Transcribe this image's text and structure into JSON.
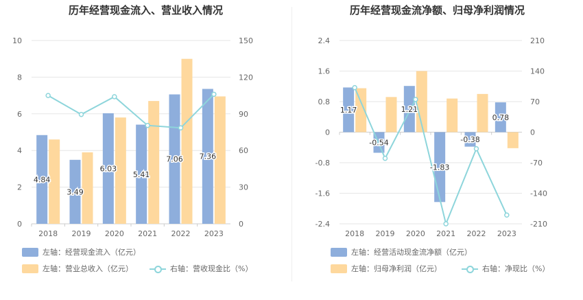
{
  "left_chart": {
    "title": "历年经营现金流入、营业收入情况",
    "legend": {
      "item1": "左轴：经营现金流入（亿元）",
      "item2": "左轴：营业总收入（亿元）",
      "item3": "右轴：营收现金比（%）"
    }
  },
  "right_chart": {
    "title": "历年经营现金流净额、归母净利润情况",
    "legend": {
      "item1": "左轴：经营活动现金流净额（亿元）",
      "item2": "左轴：归母净利润（亿元）",
      "item3": "右轴：净现比（%）"
    }
  },
  "colors": {
    "blue": "#8eaedc",
    "orange": "#fed89d",
    "line": "#8dd5db"
  },
  "chart_data": [
    {
      "type": "bar",
      "categories": [
        "2018",
        "2019",
        "2020",
        "2021",
        "2022",
        "2023"
      ],
      "series": [
        {
          "name": "左轴：经营现金流入（亿元）",
          "axis": "left",
          "values": [
            4.84,
            3.49,
            6.03,
            5.41,
            7.06,
            7.36
          ],
          "labels": [
            "4.84",
            "3.49",
            "6.03",
            "5.41",
            "7.06",
            "7.36"
          ]
        },
        {
          "name": "左轴：营业总收入（亿元）",
          "axis": "left",
          "values": [
            4.6,
            3.9,
            5.8,
            6.7,
            9.0,
            6.95
          ]
        },
        {
          "name": "右轴：营收现金比（%）",
          "axis": "right",
          "type": "line",
          "values": [
            105,
            89.5,
            104,
            80.5,
            78.5,
            106
          ]
        }
      ],
      "left_axis": {
        "ticks": [
          "0",
          "2",
          "4",
          "6",
          "8",
          "10"
        ],
        "ylim": [
          0,
          10
        ]
      },
      "right_axis": {
        "ticks": [
          "0",
          "30",
          "60",
          "90",
          "120",
          "150"
        ],
        "ylim": [
          0,
          150
        ]
      },
      "grid": true
    },
    {
      "type": "bar",
      "categories": [
        "2018",
        "2019",
        "2020",
        "2021",
        "2022",
        "2023"
      ],
      "series": [
        {
          "name": "左轴：经营活动现金流净额（亿元）",
          "axis": "left",
          "values": [
            1.17,
            -0.54,
            1.21,
            -1.83,
            -0.38,
            0.78
          ],
          "labels": [
            "1.17",
            "-0.54",
            "1.21",
            "-1.83",
            "-0.38",
            "0.78"
          ]
        },
        {
          "name": "左轴：归母净利润（亿元）",
          "axis": "left",
          "values": [
            1.15,
            0.92,
            1.6,
            0.88,
            1.0,
            -0.42
          ]
        },
        {
          "name": "右轴：净现比（%）",
          "axis": "right",
          "type": "line",
          "values": [
            102,
            -60,
            75,
            -210,
            -38,
            -190
          ]
        }
      ],
      "left_axis": {
        "ticks": [
          "-2.4",
          "-1.6",
          "-0.8",
          "0",
          "0.8",
          "1.6",
          "2.4"
        ],
        "ylim": [
          -2.4,
          2.4
        ]
      },
      "right_axis": {
        "ticks": [
          "-210",
          "-140",
          "-70",
          "0",
          "70",
          "140",
          "210"
        ],
        "ylim": [
          -210,
          210
        ]
      },
      "grid": true
    }
  ]
}
